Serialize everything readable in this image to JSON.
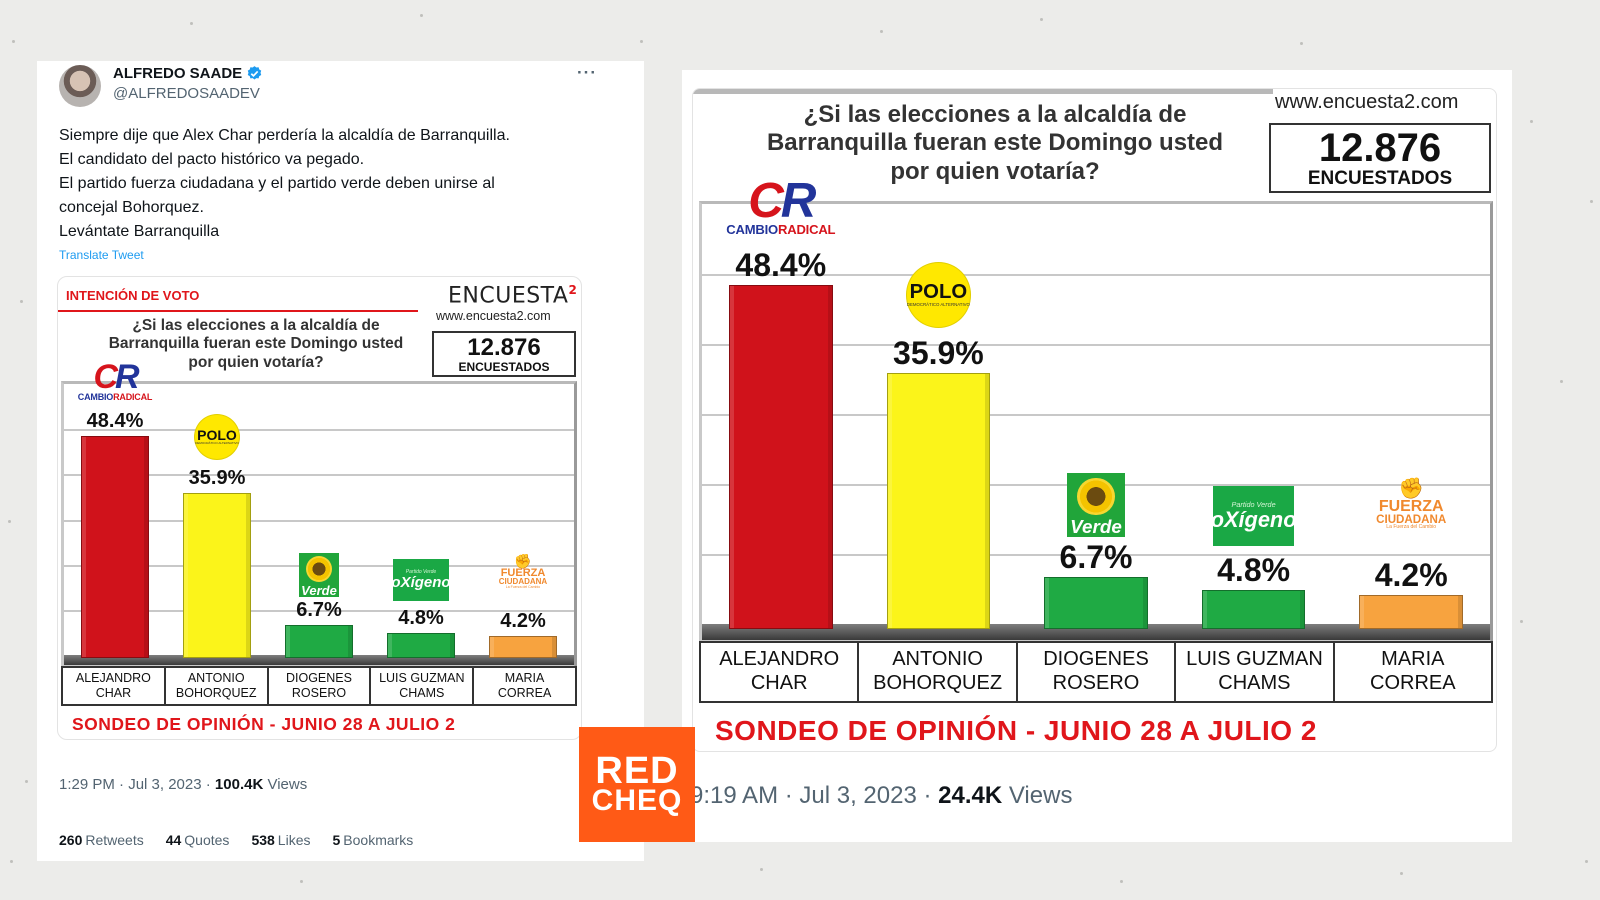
{
  "tweet": {
    "author_name": "ALFREDO SAADE",
    "author_handle": "@ALFREDOSAADEV",
    "more_icon": "more-horizontal-icon",
    "text_lines": [
      "Siempre dije que Alex Char perdería la alcaldía de Barranquilla.",
      "El candidato del pacto histórico va pegado.",
      "El partido fuerza ciudadana y el partido verde deben unirse al",
      "concejal Bohorquez.",
      "Levántate Barranquilla"
    ],
    "translate_label": "Translate Tweet",
    "timestamp": "1:29 PM · Jul 3, 2023 ·",
    "views_count": "100.4K",
    "views_label": "Views",
    "stats": [
      {
        "count": "260",
        "label": "Retweets"
      },
      {
        "count": "44",
        "label": "Quotes"
      },
      {
        "count": "538",
        "label": "Likes"
      },
      {
        "count": "5",
        "label": "Bookmarks"
      }
    ]
  },
  "poll": {
    "intencion": "INTENCIÓN DE VOTO",
    "brand": "ENCUESTA",
    "brand_sup": "2",
    "url": "www.encuesta2.com",
    "question_lines": [
      "¿Si las elecciones a la alcaldía de",
      "Barranquilla fueran este Domingo usted",
      "por quien votaría?"
    ],
    "respondents_count": "12.876",
    "respondents_label": "ENCUESTADOS",
    "footer": "SONDEO DE OPINIÓN -  JUNIO 28 A JULIO 2",
    "logos": {
      "cambio_radical": {
        "mark_a": "C",
        "mark_b": "R",
        "text_a": "CAMBIO",
        "text_b": "RADICAL"
      },
      "polo": {
        "text": "POLO",
        "sub": "DEMOCRÁTICO ALTERNATIVO"
      },
      "verde": {
        "text": "Verde"
      },
      "oxigeno": {
        "sub": "Partido Verde",
        "text": "oXígeno"
      },
      "fuerza": {
        "icon": "fist-icon",
        "text_a": "FUERZA",
        "text_b": "CIUDADANA",
        "sub": "La Fuerza del Cambio"
      }
    }
  },
  "chart_data": {
    "type": "bar",
    "title": "¿Si las elecciones a la alcaldía de Barranquilla fueran este Domingo usted por quien votaría?",
    "categories": [
      "ALEJANDRO CHAR",
      "ANTONIO BOHORQUEZ",
      "DIOGENES ROSERO",
      "LUIS GUZMAN CHAMS",
      "MARIA CORREA"
    ],
    "category_lines": [
      [
        "ALEJANDRO",
        "CHAR"
      ],
      [
        "ANTONIO",
        "BOHORQUEZ"
      ],
      [
        "DIOGENES",
        "ROSERO"
      ],
      [
        "LUIS GUZMAN",
        "CHAMS"
      ],
      [
        "MARIA",
        "CORREA"
      ]
    ],
    "values": [
      48.4,
      35.9,
      6.7,
      4.8,
      4.2
    ],
    "value_labels": [
      "48.4%",
      "35.9%",
      "6.7%",
      "4.8%",
      "4.2%"
    ],
    "colors": [
      "#d0121b",
      "#fbf41a",
      "#1faa44",
      "#1faa44",
      "#f7a33f"
    ],
    "ylim": [
      0,
      60
    ],
    "grid": true
  },
  "right": {
    "timestamp": "9:19 AM · Jul 3, 2023 ·",
    "views_count": "24.4K",
    "views_label": "Views"
  },
  "watermark": {
    "line1": "RED",
    "line2": "CHEQ"
  },
  "colors": {
    "twitter_blue": "#1d9bf0",
    "poll_red": "#e0161b",
    "redcheq_orange": "#ff5a16"
  }
}
